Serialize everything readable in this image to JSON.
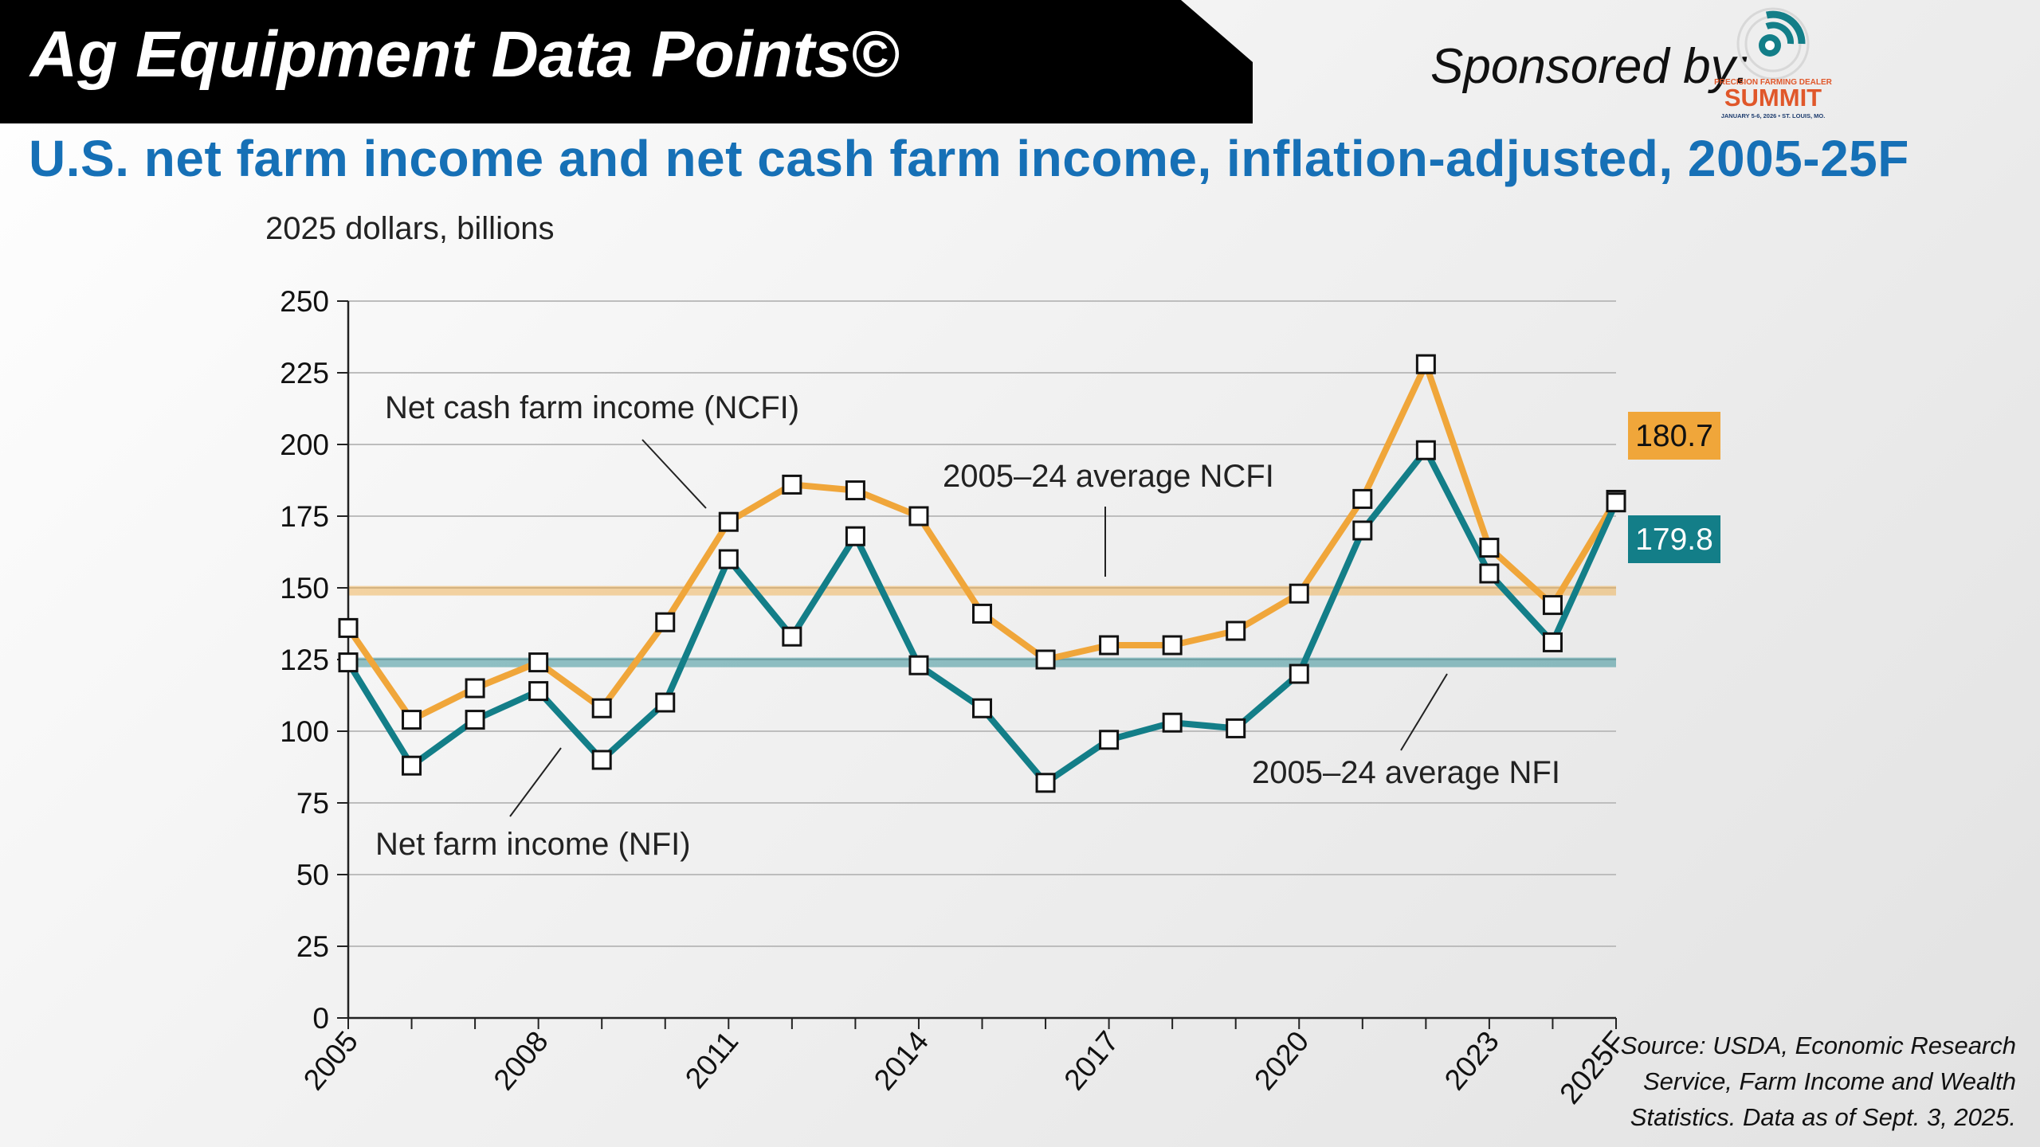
{
  "header": {
    "title": "Ag Equipment Data Points©",
    "sponsor_label": "Sponsored by:",
    "sponsor_logo": {
      "line1": "PRECISION FARMING DEALER",
      "line2": "SUMMIT",
      "line3": "JANUARY 5-6, 2026 • ST. LOUIS, MO."
    }
  },
  "chart_title": "U.S. net farm income and net cash farm income, inflation-adjusted, 2005-25F",
  "source": "Source: USDA, Economic Research Service, Farm Income and Wealth Statistics. Data as of Sept. 3, 2025.",
  "colors": {
    "ncfi": "#f0a63a",
    "nfi": "#137e88",
    "title": "#1670b6",
    "header_bg": "#000000"
  },
  "chart_data": {
    "type": "line",
    "ylabel": "2025 dollars, billions",
    "ylim": [
      0,
      250
    ],
    "yticks": [
      0,
      25,
      50,
      75,
      100,
      125,
      150,
      175,
      200,
      225,
      250
    ],
    "x": [
      2005,
      2006,
      2007,
      2008,
      2009,
      2010,
      2011,
      2012,
      2013,
      2014,
      2015,
      2016,
      2017,
      2018,
      2019,
      2020,
      2021,
      2022,
      2023,
      2024,
      2025
    ],
    "xticks": [
      "2005",
      "2008",
      "2011",
      "2014",
      "2017",
      "2020",
      "2023",
      "2025F"
    ],
    "xtick_values": [
      2005,
      2008,
      2011,
      2014,
      2017,
      2020,
      2023,
      2025
    ],
    "grid": true,
    "series": [
      {
        "name": "Net cash farm income (NCFI)",
        "key": "ncfi",
        "values": [
          136,
          104,
          115,
          124,
          108,
          138,
          173,
          186,
          184,
          175,
          141,
          125,
          130,
          130,
          135,
          148,
          181,
          228,
          164,
          144,
          180.7
        ],
        "end_label": "180.7"
      },
      {
        "name": "Net farm income (NFI)",
        "key": "nfi",
        "values": [
          124,
          88,
          104,
          114,
          90,
          110,
          160,
          133,
          168,
          123,
          108,
          82,
          97,
          103,
          101,
          120,
          170,
          198,
          155,
          131,
          179.8
        ],
        "end_label": "179.8"
      }
    ],
    "reference_lines": [
      {
        "name": "2005–24 average NCFI",
        "key": "ncfi",
        "value": 149
      },
      {
        "name": "2005–24 average NFI",
        "key": "nfi",
        "value": 124
      }
    ]
  }
}
